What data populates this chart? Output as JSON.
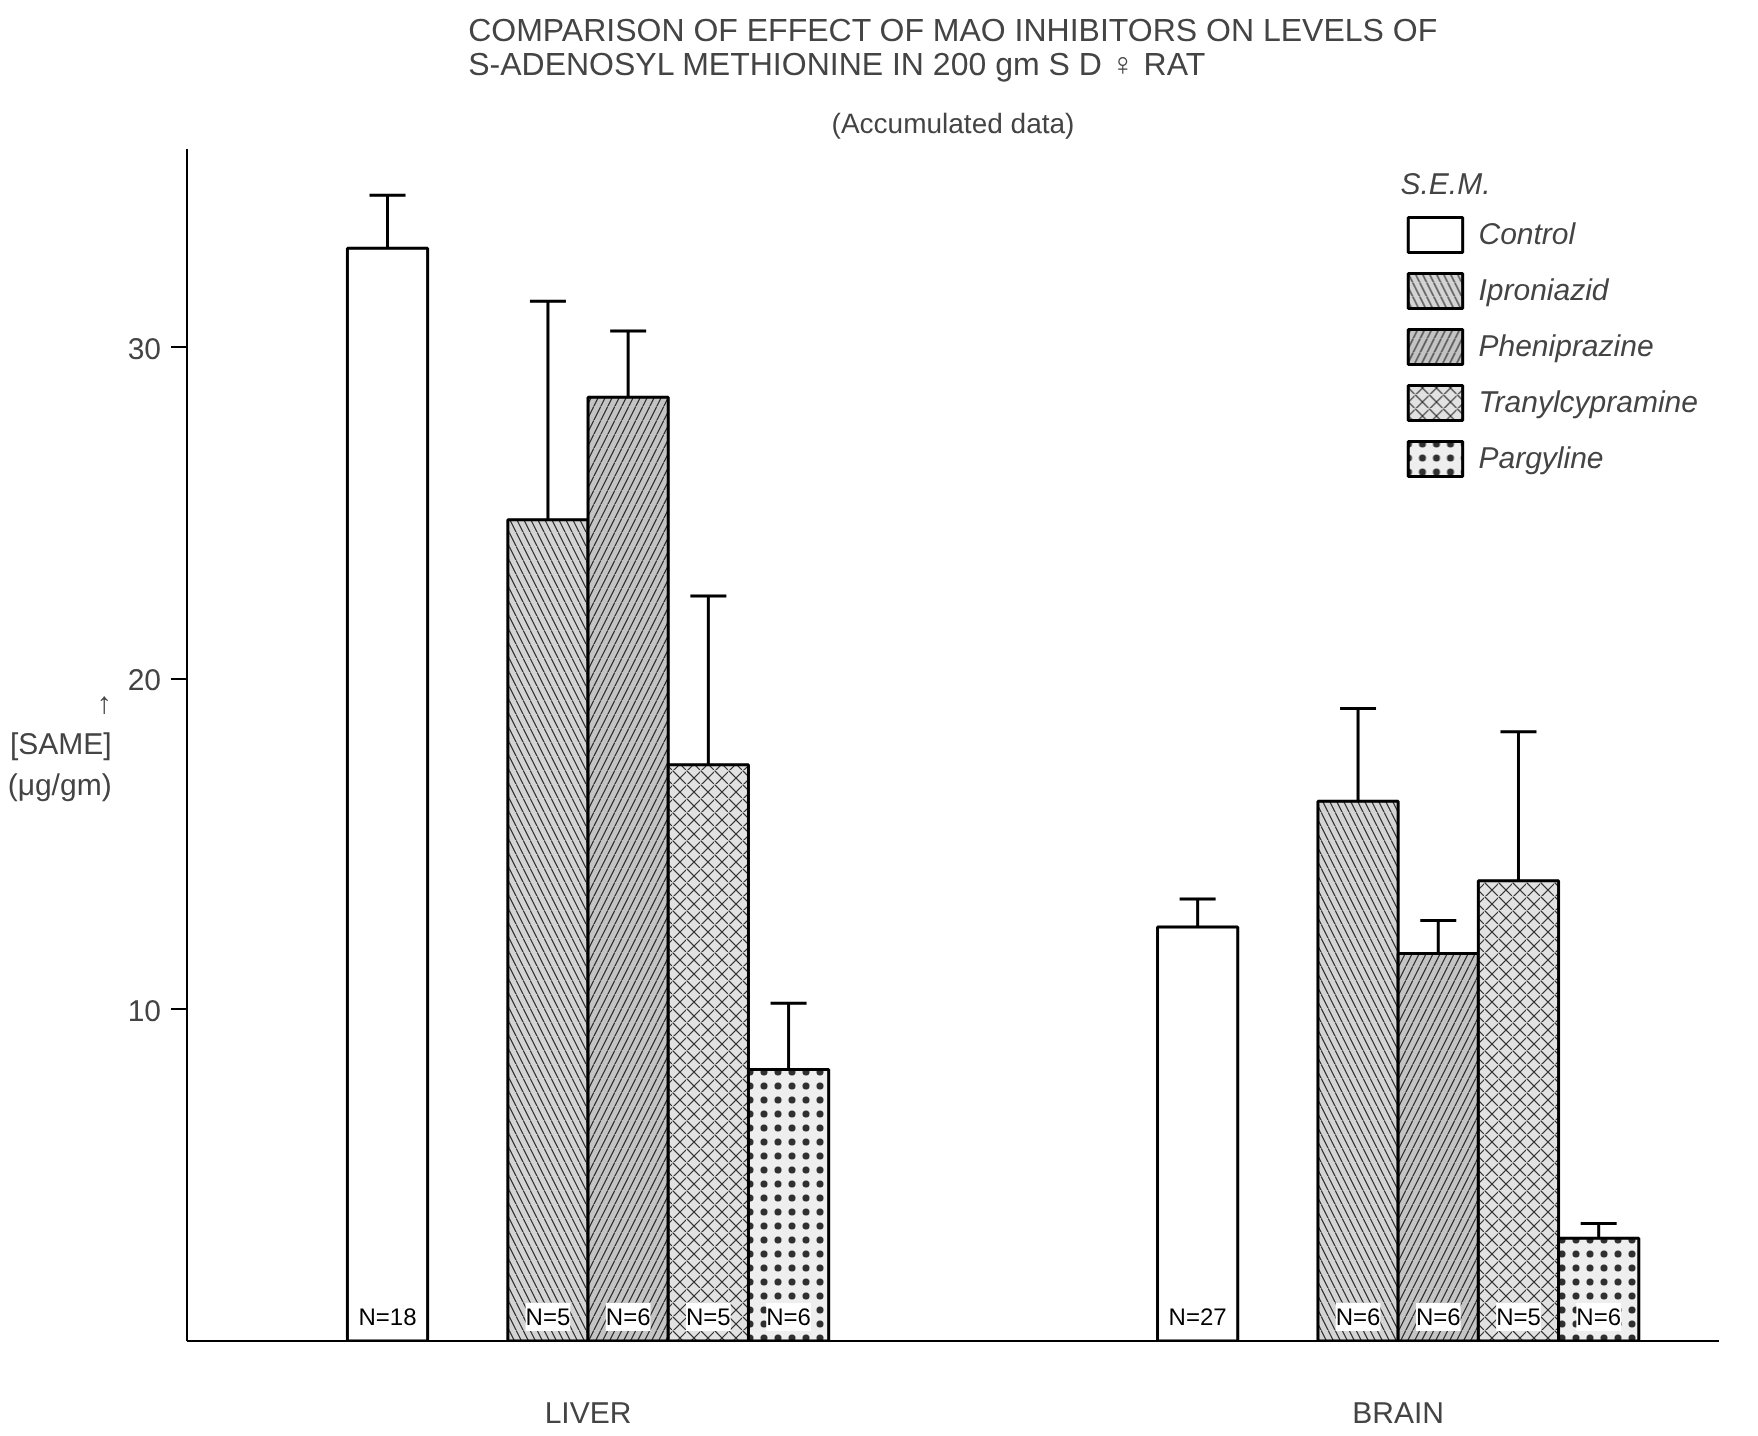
{
  "chart_data": {
    "type": "bar",
    "title": "COMPARISON OF EFFECT OF MAO INHIBITORS ON LEVELS OF\nS-ADENOSYL METHIONINE IN 200 gm S D ♀ RAT",
    "subtitle": "(Accumulated data)",
    "ylabel": "↑\n[SAME]\n(μg/gm)",
    "legend_title": "S.E.M.",
    "categories": [
      "LIVER",
      "BRAIN"
    ],
    "series": [
      {
        "name": "Control",
        "color": "#ffffff",
        "values": [
          33.0,
          12.5
        ],
        "errors": [
          1.6,
          0.85
        ]
      },
      {
        "name": "Iproniazid",
        "color": "#d4d4d4",
        "values": [
          24.8,
          16.3
        ],
        "errors": [
          6.6,
          2.8
        ]
      },
      {
        "name": "Pheniprazine",
        "color": "#c4c4c4",
        "values": [
          28.5,
          11.7
        ],
        "errors": [
          2.0,
          1.0
        ]
      },
      {
        "name": "Tranylcypramine",
        "color": "#e2e2e2",
        "values": [
          17.4,
          13.9
        ],
        "errors": [
          5.1,
          4.5
        ]
      },
      {
        "name": "Pargyline",
        "color": "#eeeeee",
        "values": [
          8.2,
          3.1
        ],
        "errors": [
          2.0,
          0.45
        ]
      }
    ],
    "annotations": [
      "N=18",
      "N=5",
      "N=6",
      "N=5",
      "N=6",
      "N=27",
      "N=6",
      "N=6",
      "N=5",
      "N=6"
    ],
    "ylim": [
      0,
      36
    ],
    "yticks": [
      10,
      20,
      30
    ],
    "grid": false,
    "legend": "top right"
  }
}
